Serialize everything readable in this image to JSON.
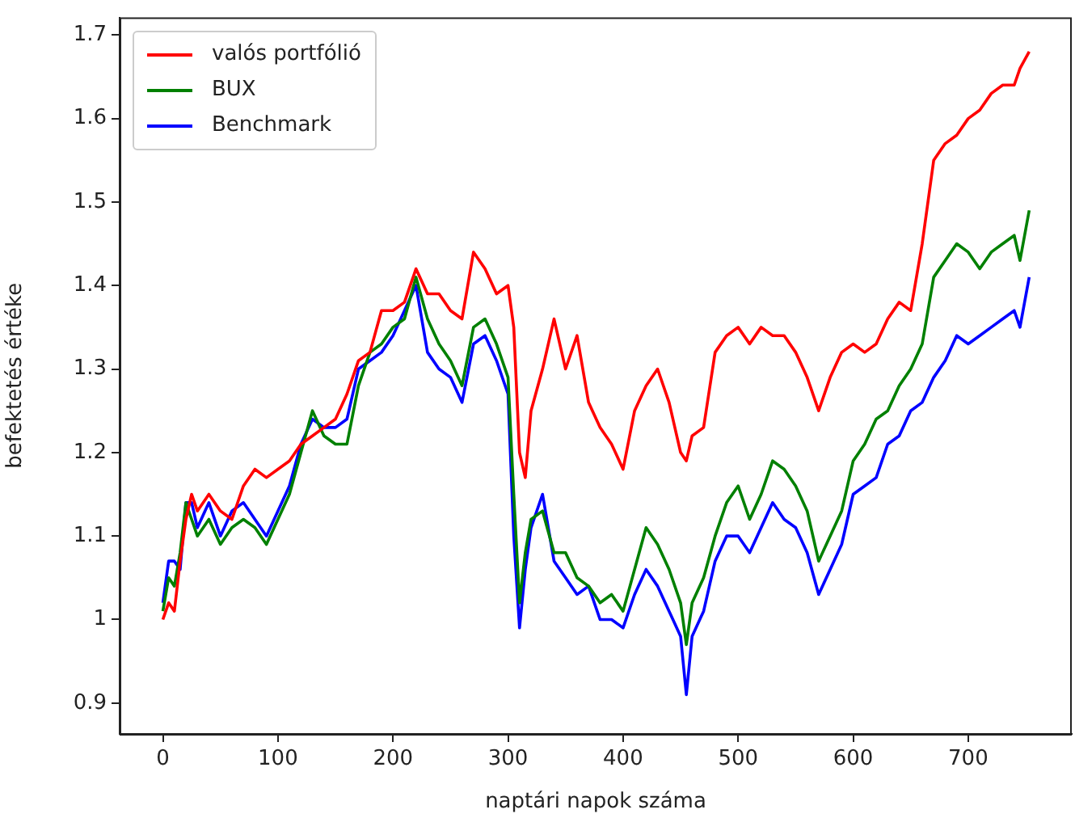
{
  "chart_data": {
    "type": "line",
    "xlabel": "naptári napok száma",
    "ylabel": "befektetés értéke",
    "x": [
      0,
      5,
      10,
      15,
      20,
      25,
      30,
      40,
      50,
      60,
      70,
      80,
      90,
      100,
      110,
      120,
      130,
      140,
      150,
      160,
      170,
      180,
      190,
      200,
      210,
      220,
      230,
      240,
      250,
      260,
      270,
      280,
      290,
      300,
      305,
      310,
      315,
      320,
      330,
      340,
      350,
      360,
      370,
      380,
      390,
      400,
      410,
      420,
      430,
      440,
      450,
      455,
      460,
      470,
      480,
      490,
      500,
      510,
      520,
      530,
      540,
      550,
      560,
      570,
      580,
      590,
      600,
      610,
      620,
      630,
      640,
      650,
      660,
      670,
      680,
      690,
      700,
      710,
      720,
      730,
      740,
      745,
      753
    ],
    "xlim": [
      -37.6,
      790
    ],
    "xticks": [
      0,
      100,
      200,
      300,
      400,
      500,
      600,
      700
    ],
    "ylim": [
      0.863,
      1.721
    ],
    "yticks": [
      0.9,
      1.0,
      1.1,
      1.2,
      1.3,
      1.4,
      1.5,
      1.6,
      1.7
    ],
    "grid": false,
    "legend": "top left",
    "marker": "none",
    "line_style": "solid",
    "series": [
      {
        "name": "valós portfólió",
        "color": "#ff0000",
        "values": [
          1.0,
          1.02,
          1.01,
          1.07,
          1.12,
          1.15,
          1.13,
          1.15,
          1.13,
          1.12,
          1.16,
          1.18,
          1.17,
          1.18,
          1.19,
          1.21,
          1.22,
          1.23,
          1.24,
          1.27,
          1.31,
          1.32,
          1.37,
          1.37,
          1.38,
          1.42,
          1.39,
          1.39,
          1.37,
          1.36,
          1.44,
          1.42,
          1.39,
          1.4,
          1.35,
          1.2,
          1.17,
          1.25,
          1.3,
          1.36,
          1.3,
          1.34,
          1.26,
          1.23,
          1.21,
          1.18,
          1.25,
          1.28,
          1.3,
          1.26,
          1.2,
          1.19,
          1.22,
          1.23,
          1.32,
          1.34,
          1.35,
          1.33,
          1.35,
          1.34,
          1.34,
          1.32,
          1.29,
          1.25,
          1.29,
          1.32,
          1.33,
          1.32,
          1.33,
          1.36,
          1.38,
          1.37,
          1.45,
          1.55,
          1.57,
          1.58,
          1.6,
          1.61,
          1.63,
          1.64,
          1.64,
          1.66,
          1.68
        ]
      },
      {
        "name": "BUX",
        "color": "#008000",
        "values": [
          1.01,
          1.05,
          1.04,
          1.08,
          1.14,
          1.12,
          1.1,
          1.12,
          1.09,
          1.11,
          1.12,
          1.11,
          1.09,
          1.12,
          1.15,
          1.2,
          1.25,
          1.22,
          1.21,
          1.21,
          1.28,
          1.32,
          1.33,
          1.35,
          1.36,
          1.41,
          1.36,
          1.33,
          1.31,
          1.28,
          1.35,
          1.36,
          1.33,
          1.29,
          1.15,
          1.02,
          1.08,
          1.12,
          1.13,
          1.08,
          1.08,
          1.05,
          1.04,
          1.02,
          1.03,
          1.01,
          1.06,
          1.11,
          1.09,
          1.06,
          1.02,
          0.97,
          1.02,
          1.05,
          1.1,
          1.14,
          1.16,
          1.12,
          1.15,
          1.19,
          1.18,
          1.16,
          1.13,
          1.07,
          1.1,
          1.13,
          1.19,
          1.21,
          1.24,
          1.25,
          1.28,
          1.3,
          1.33,
          1.41,
          1.43,
          1.45,
          1.44,
          1.42,
          1.44,
          1.45,
          1.46,
          1.43,
          1.49
        ]
      },
      {
        "name": "Benchmark",
        "color": "#0000ff",
        "values": [
          1.02,
          1.07,
          1.07,
          1.06,
          1.14,
          1.14,
          1.11,
          1.14,
          1.1,
          1.13,
          1.14,
          1.12,
          1.1,
          1.13,
          1.16,
          1.21,
          1.24,
          1.23,
          1.23,
          1.24,
          1.3,
          1.31,
          1.32,
          1.34,
          1.37,
          1.4,
          1.32,
          1.3,
          1.29,
          1.26,
          1.33,
          1.34,
          1.31,
          1.27,
          1.1,
          0.99,
          1.06,
          1.11,
          1.15,
          1.07,
          1.05,
          1.03,
          1.04,
          1.0,
          1.0,
          0.99,
          1.03,
          1.06,
          1.04,
          1.01,
          0.98,
          0.91,
          0.98,
          1.01,
          1.07,
          1.1,
          1.1,
          1.08,
          1.11,
          1.14,
          1.12,
          1.11,
          1.08,
          1.03,
          1.06,
          1.09,
          1.15,
          1.16,
          1.17,
          1.21,
          1.22,
          1.25,
          1.26,
          1.29,
          1.31,
          1.34,
          1.33,
          1.34,
          1.35,
          1.36,
          1.37,
          1.35,
          1.41
        ]
      }
    ]
  }
}
